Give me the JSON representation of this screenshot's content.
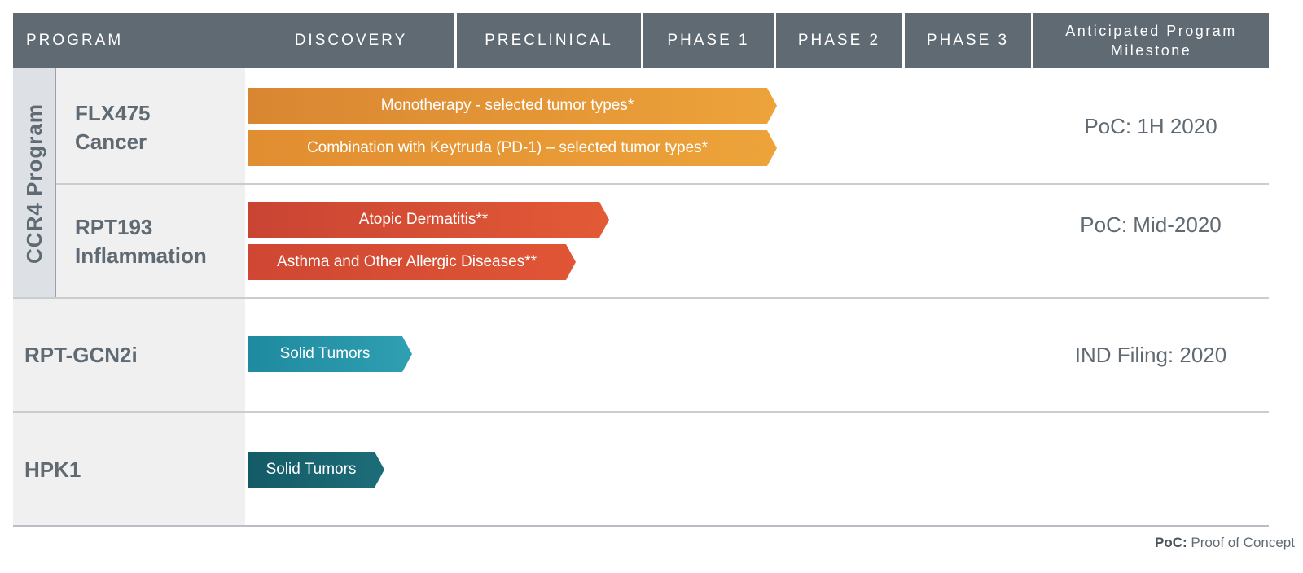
{
  "header": {
    "program": "PROGRAM",
    "discovery": "DISCOVERY",
    "preclinical": "PRECLINICAL",
    "phase1": "PHASE 1",
    "phase2": "PHASE 2",
    "phase3": "PHASE 3",
    "milestone_line1": "Anticipated Program",
    "milestone_line2": "Milestone"
  },
  "group": {
    "label": "CCR4 Program"
  },
  "programs": [
    {
      "name_line1": "FLX475",
      "name_line2": "Cancer",
      "milestone": "PoC: 1H 2020",
      "bars": [
        {
          "label": "Monotherapy - selected tumor types*",
          "color": "#e8952f"
        },
        {
          "label": "Combination with Keytruda (PD-1) – selected tumor types*",
          "color": "#e8952f"
        }
      ]
    },
    {
      "name_line1": "RPT193",
      "name_line2": "Inflammation",
      "milestone": "PoC: Mid-2020",
      "bars": [
        {
          "label": "Atopic Dermatitis**",
          "color": "#d9472f"
        },
        {
          "label": "Asthma and Other Allergic Diseases**",
          "color": "#d9472f"
        }
      ]
    },
    {
      "name_line1": "RPT-GCN2i",
      "milestone": "IND Filing: 2020",
      "bars": [
        {
          "label": "Solid Tumors",
          "color": "#2a92a6"
        }
      ]
    },
    {
      "name_line1": "HPK1",
      "milestone": "",
      "bars": [
        {
          "label": "Solid Tumors",
          "color": "#16636f"
        }
      ]
    }
  ],
  "footnote": {
    "bold": "PoC:",
    "text": " Proof of Concept"
  },
  "colors": {
    "header_bg": "#5f6a73",
    "text_grey": "#5f6a73",
    "orange": "#e8952f",
    "red": "#d9472f",
    "teal": "#2a92a6",
    "dark_teal": "#16636f"
  }
}
